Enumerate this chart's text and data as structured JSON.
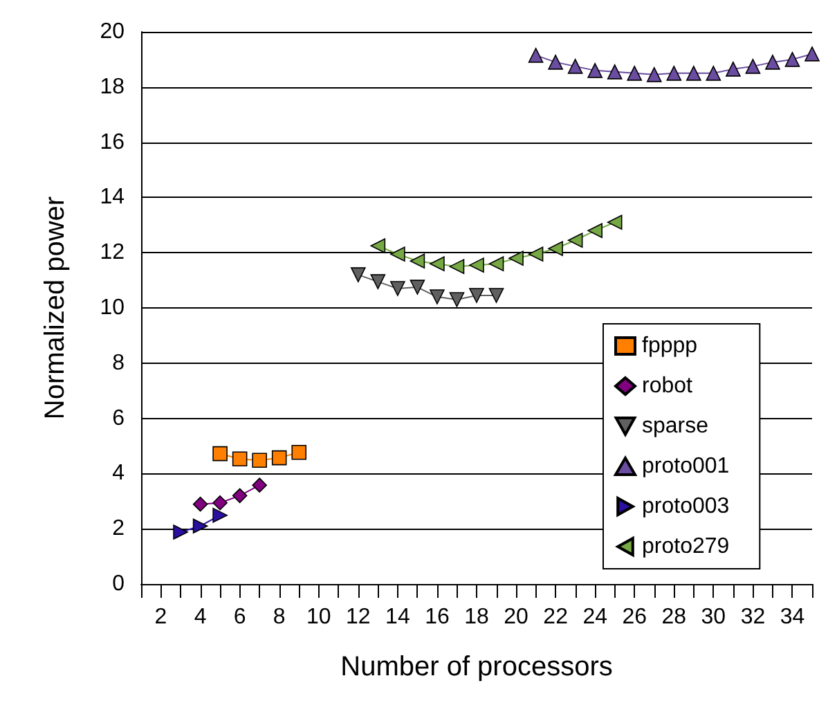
{
  "chart_data": {
    "type": "line",
    "xlabel": "Number of processors",
    "ylabel": "Normalized power",
    "xlim": [
      1,
      35
    ],
    "xticks": [
      {
        "value": 1,
        "label": null
      },
      2,
      {
        "value": 3,
        "label": null
      },
      4,
      {
        "value": 5,
        "label": null
      },
      6,
      {
        "value": 7,
        "label": null
      },
      8,
      {
        "value": 9,
        "label": null
      },
      10,
      {
        "value": 11,
        "label": null
      },
      12,
      {
        "value": 13,
        "label": null
      },
      14,
      {
        "value": 15,
        "label": null
      },
      16,
      {
        "value": 17,
        "label": null
      },
      18,
      {
        "value": 19,
        "label": null
      },
      20,
      {
        "value": 21,
        "label": null
      },
      22,
      {
        "value": 23,
        "label": null
      },
      24,
      {
        "value": 25,
        "label": null
      },
      26,
      {
        "value": 27,
        "label": null
      },
      28,
      {
        "value": 29,
        "label": null
      },
      30,
      {
        "value": 31,
        "label": null
      },
      32,
      {
        "value": 33,
        "label": null
      },
      34,
      {
        "value": 35,
        "label": null
      }
    ],
    "ylim": [
      0,
      20
    ],
    "yticks": [
      0,
      2,
      4,
      6,
      8,
      10,
      12,
      14,
      16,
      18,
      20
    ],
    "grid": "y",
    "legend": "right",
    "line_style": "solid",
    "series": [
      {
        "name": "fpppp",
        "color": "#ff7f00",
        "marker": "square",
        "x": [
          5,
          6,
          7,
          8,
          9
        ],
        "values": [
          4.72,
          4.53,
          4.48,
          4.57,
          4.77
        ]
      },
      {
        "name": "robot",
        "color": "#800080",
        "marker": "diamond",
        "x": [
          4,
          5,
          6,
          7
        ],
        "values": [
          2.89,
          2.94,
          3.2,
          3.58
        ]
      },
      {
        "name": "sparse",
        "color": "#606060",
        "marker": "triangle-down",
        "x": [
          12,
          13,
          14,
          15,
          16,
          17,
          18,
          19
        ],
        "values": [
          11.2,
          10.95,
          10.7,
          10.75,
          10.4,
          10.3,
          10.45,
          10.45
        ]
      },
      {
        "name": "proto001",
        "color": "#6a4ca0",
        "marker": "triangle",
        "x": [
          21,
          22,
          23,
          24,
          25,
          26,
          27,
          28,
          29,
          30,
          31,
          32,
          33,
          34,
          35
        ],
        "values": [
          19.15,
          18.9,
          18.75,
          18.6,
          18.55,
          18.5,
          18.45,
          18.5,
          18.5,
          18.5,
          18.65,
          18.75,
          18.9,
          19.0,
          19.2
        ]
      },
      {
        "name": "proto003",
        "color": "#2a0fa0",
        "marker": "triangle-right",
        "x": [
          3,
          4,
          5
        ],
        "values": [
          1.88,
          2.1,
          2.49
        ]
      },
      {
        "name": "proto279",
        "color": "#76a844",
        "marker": "triangle-left",
        "x": [
          13,
          14,
          15,
          16,
          17,
          18,
          19,
          20,
          21,
          22,
          23,
          24,
          25
        ],
        "values": [
          12.25,
          11.95,
          11.7,
          11.6,
          11.5,
          11.55,
          11.6,
          11.8,
          11.95,
          12.15,
          12.45,
          12.8,
          13.1
        ]
      }
    ]
  }
}
